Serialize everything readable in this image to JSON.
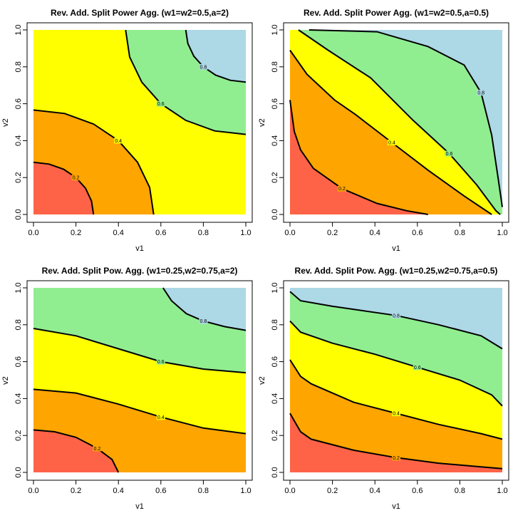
{
  "chart_data": [
    {
      "type": "contour",
      "title": "Rev. Add. Split Power Agg. (w1=w2=0.5,a=2)",
      "xlabel": "v1",
      "ylabel": "v2",
      "xlim": [
        0,
        1
      ],
      "ylim": [
        0,
        1
      ],
      "xticks": [
        {
          "value": 0,
          "label": "0.0"
        },
        0.2,
        0.4,
        0.6,
        0.8,
        {
          "value": 1,
          "label": "1.0"
        }
      ],
      "yticks": [
        {
          "value": 0,
          "label": "0.0"
        },
        0.2,
        0.4,
        0.6,
        0.8,
        {
          "value": 1,
          "label": "1.0"
        }
      ],
      "colors": [
        "#ff6347",
        "#ffa500",
        "#ffff00",
        "#90ee90",
        "#add8e6"
      ],
      "contours": [
        {
          "level": 0.2,
          "x": [
            0,
            0.073,
            0.142,
            0.2,
            0.245,
            0.273,
            0.283
          ],
          "y": [
            0.283,
            0.273,
            0.245,
            0.2,
            0.142,
            0.073,
            0
          ]
        },
        {
          "level": 0.4,
          "x": [
            0,
            0.147,
            0.283,
            0.4,
            0.49,
            0.547,
            0.566
          ],
          "y": [
            0.566,
            0.547,
            0.49,
            0.4,
            0.283,
            0.147,
            0
          ]
        },
        {
          "level": 0.6,
          "x": [
            0.434,
            0.453,
            0.51,
            0.6,
            0.717,
            0.853,
            1
          ],
          "y": [
            1,
            0.853,
            0.717,
            0.6,
            0.51,
            0.453,
            0.434
          ]
        },
        {
          "level": 0.8,
          "x": [
            0.717,
            0.727,
            0.755,
            0.8,
            0.858,
            0.927,
            1
          ],
          "y": [
            1,
            0.927,
            0.858,
            0.8,
            0.755,
            0.727,
            0.717
          ]
        }
      ]
    },
    {
      "type": "contour",
      "title": "Rev. Add. Split Power Agg. (w1=w2=0.5,a=0.5)",
      "xlabel": "v1",
      "ylabel": "v2",
      "xlim": [
        0,
        1
      ],
      "ylim": [
        0,
        1
      ],
      "xticks": [
        {
          "value": 0,
          "label": "0.0"
        },
        0.2,
        0.4,
        0.6,
        0.8,
        {
          "value": 1,
          "label": "1.0"
        }
      ],
      "yticks": [
        {
          "value": 0,
          "label": "0.0"
        },
        0.2,
        0.4,
        0.6,
        0.8,
        {
          "value": 1,
          "label": "1.0"
        }
      ],
      "colors": [
        "#ff6347",
        "#ffa500",
        "#ffff00",
        "#90ee90",
        "#add8e6"
      ],
      "contours": [
        {
          "level": 0.2,
          "x": [
            0,
            0.02,
            0.05,
            0.11,
            0.245,
            0.41,
            0.55,
            0.65
          ],
          "y": [
            0.62,
            0.45,
            0.35,
            0.25,
            0.14,
            0.06,
            0.02,
            0
          ]
        },
        {
          "level": 0.4,
          "x": [
            0,
            0.08,
            0.21,
            0.31,
            0.48,
            0.65,
            0.82,
            0.95
          ],
          "y": [
            0.89,
            0.76,
            0.62,
            0.54,
            0.39,
            0.24,
            0.1,
            0
          ]
        },
        {
          "level": 0.6,
          "x": [
            0.04,
            0.18,
            0.38,
            0.58,
            0.75,
            0.88,
            0.97,
            0.99
          ],
          "y": [
            1,
            0.89,
            0.74,
            0.51,
            0.33,
            0.16,
            0.02,
            0
          ]
        },
        {
          "level": 0.8,
          "x": [
            0.09,
            0.41,
            0.65,
            0.82,
            0.9,
            0.95,
            0.98,
            1
          ],
          "y": [
            1,
            0.99,
            0.91,
            0.81,
            0.66,
            0.43,
            0.2,
            0.04
          ]
        }
      ]
    },
    {
      "type": "contour",
      "title": "Rev. Add. Split Pow. Agg. (w1=0.25,w2=0.75,a=2)",
      "xlabel": "v1",
      "ylabel": "v2",
      "xlim": [
        0,
        1
      ],
      "ylim": [
        0,
        1
      ],
      "xticks": [
        {
          "value": 0,
          "label": "0.0"
        },
        0.2,
        0.4,
        0.6,
        0.8,
        {
          "value": 1,
          "label": "1.0"
        }
      ],
      "yticks": [
        {
          "value": 0,
          "label": "0.0"
        },
        0.2,
        0.4,
        0.6,
        0.8,
        {
          "value": 1,
          "label": "1.0"
        }
      ],
      "colors": [
        "#ff6347",
        "#ffa500",
        "#ffff00",
        "#90ee90",
        "#add8e6"
      ],
      "contours": [
        {
          "level": 0.2,
          "x": [
            0,
            0.1,
            0.2,
            0.3,
            0.37,
            0.4
          ],
          "y": [
            0.23,
            0.22,
            0.19,
            0.13,
            0.07,
            0
          ]
        },
        {
          "level": 0.4,
          "x": [
            0,
            0.2,
            0.4,
            0.6,
            0.8,
            1
          ],
          "y": [
            0.45,
            0.43,
            0.37,
            0.3,
            0.24,
            0.21
          ]
        },
        {
          "level": 0.6,
          "x": [
            0,
            0.2,
            0.4,
            0.6,
            0.8,
            1
          ],
          "y": [
            0.78,
            0.74,
            0.67,
            0.6,
            0.56,
            0.54
          ]
        },
        {
          "level": 0.8,
          "x": [
            0.61,
            0.65,
            0.72,
            0.8,
            0.9,
            1
          ],
          "y": [
            1,
            0.93,
            0.86,
            0.82,
            0.79,
            0.77
          ]
        }
      ]
    },
    {
      "type": "contour",
      "title": "Rev. Add. Split Pow. Agg. (w1=0.25,w2=0.75,a=0.5)",
      "xlabel": "v1",
      "ylabel": "v2",
      "xlim": [
        0,
        1
      ],
      "ylim": [
        0,
        1
      ],
      "xticks": [
        {
          "value": 0,
          "label": "0.0"
        },
        0.2,
        0.4,
        0.6,
        0.8,
        {
          "value": 1,
          "label": "1.0"
        }
      ],
      "yticks": [
        {
          "value": 0,
          "label": "0.0"
        },
        0.2,
        0.4,
        0.6,
        0.8,
        {
          "value": 1,
          "label": "1.0"
        }
      ],
      "colors": [
        "#ff6347",
        "#ffa500",
        "#ffff00",
        "#90ee90",
        "#add8e6"
      ],
      "contours": [
        {
          "level": 0.2,
          "x": [
            0,
            0.05,
            0.1,
            0.3,
            0.5,
            0.7,
            0.9,
            1
          ],
          "y": [
            0.32,
            0.22,
            0.18,
            0.12,
            0.08,
            0.05,
            0.03,
            0.02
          ]
        },
        {
          "level": 0.4,
          "x": [
            0,
            0.05,
            0.1,
            0.3,
            0.5,
            0.7,
            0.9,
            1
          ],
          "y": [
            0.61,
            0.52,
            0.48,
            0.38,
            0.32,
            0.26,
            0.21,
            0.18
          ]
        },
        {
          "level": 0.6,
          "x": [
            0,
            0.05,
            0.2,
            0.4,
            0.6,
            0.8,
            0.95,
            1
          ],
          "y": [
            0.82,
            0.76,
            0.7,
            0.64,
            0.57,
            0.5,
            0.42,
            0.36
          ]
        },
        {
          "level": 0.8,
          "x": [
            0,
            0.05,
            0.2,
            0.5,
            0.7,
            0.9,
            1
          ],
          "y": [
            0.98,
            0.93,
            0.9,
            0.85,
            0.8,
            0.74,
            0.67
          ]
        }
      ]
    }
  ]
}
